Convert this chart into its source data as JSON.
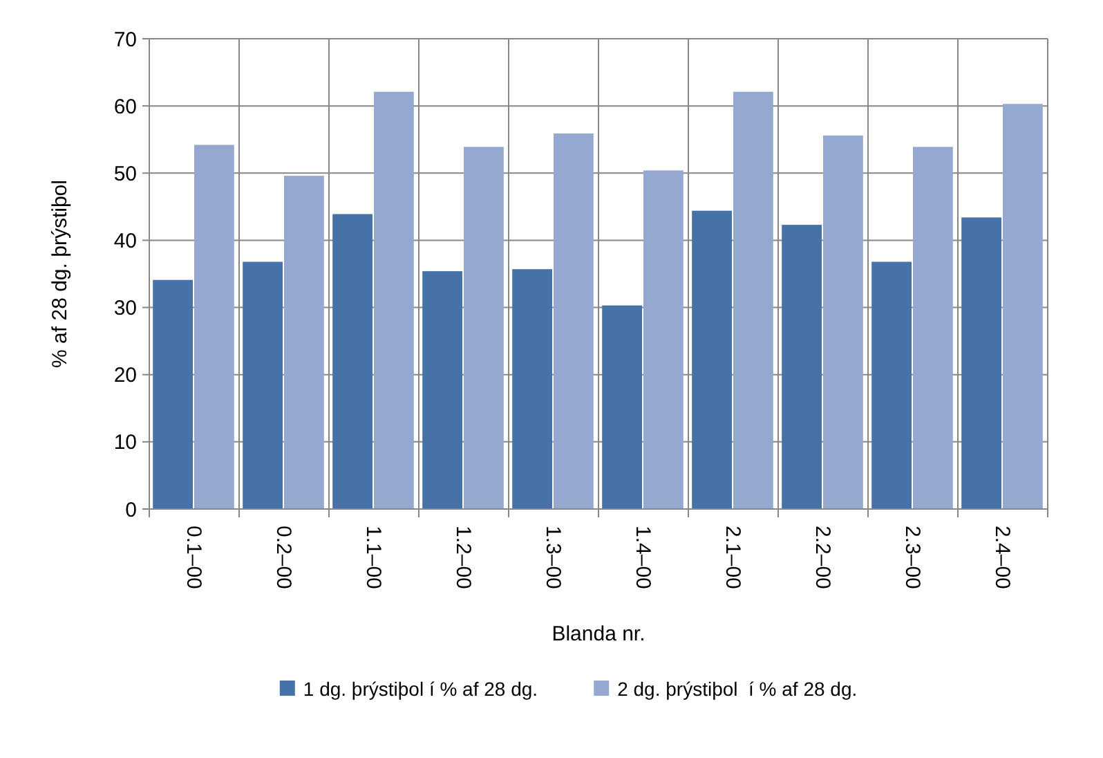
{
  "chart_data": {
    "type": "bar",
    "xlabel": "Blanda nr.",
    "ylabel": "% af 28 dg. þrýstiþol",
    "categories": [
      "0.1–00",
      "0.2–00",
      "1.1–00",
      "1.2–00",
      "1.3–00",
      "1.4–00",
      "2.1–00",
      "2.2–00",
      "2.3–00",
      "2.4–00"
    ],
    "series": [
      {
        "name": "1 dg. þrýstiþol í % af 28 dg.",
        "color": "#4672a8",
        "values": [
          34.1,
          36.8,
          43.9,
          35.4,
          35.7,
          30.3,
          44.4,
          42.3,
          36.8,
          43.4
        ]
      },
      {
        "name": "2 dg. þrýstiþol  í % af 28 dg.",
        "color": "#95a9d0",
        "values": [
          54.2,
          49.6,
          62.1,
          53.9,
          55.9,
          50.4,
          62.1,
          55.6,
          53.9,
          60.3
        ]
      }
    ],
    "ylim": [
      0,
      70
    ],
    "yticks": [
      0,
      10,
      20,
      30,
      40,
      50,
      60,
      70
    ],
    "grid": true,
    "legend": "bottom"
  }
}
